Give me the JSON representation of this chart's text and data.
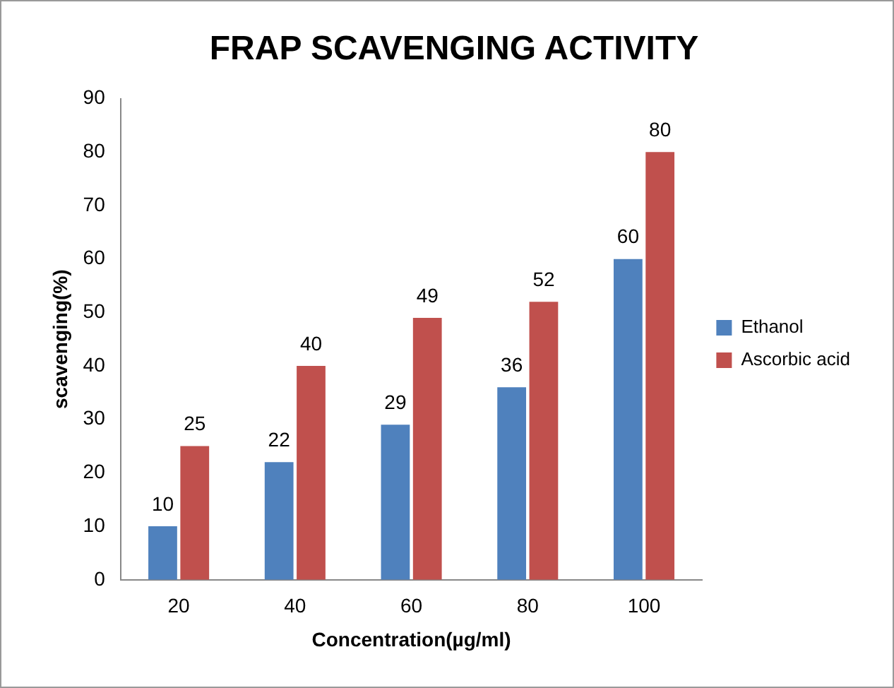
{
  "chart_data": {
    "type": "bar",
    "title": "FRAP SCAVENGING ACTIVITY",
    "xlabel": "Concentration(µg/ml)",
    "ylabel": "scavenging(%)",
    "categories": [
      "20",
      "40",
      "60",
      "80",
      "100"
    ],
    "series": [
      {
        "name": "Ethanol",
        "color": "#4f81bd",
        "values": [
          10,
          22,
          29,
          36,
          60
        ]
      },
      {
        "name": "Ascorbic acid",
        "color": "#c0504d",
        "values": [
          25,
          40,
          49,
          52,
          80
        ]
      }
    ],
    "ylim": [
      0,
      90
    ],
    "yticks": [
      0,
      10,
      20,
      30,
      40,
      50,
      60,
      70,
      80,
      90
    ],
    "grid": false,
    "legend": "right",
    "data_labels": true
  }
}
